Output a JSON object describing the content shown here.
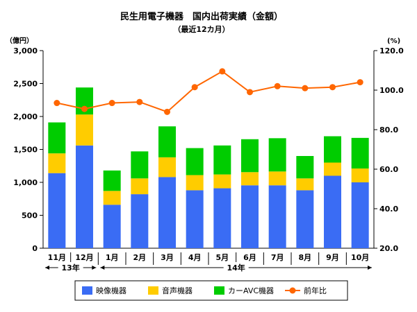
{
  "chart_data": {
    "type": "bar",
    "title": "民生用電子機器　国内出荷実績（金額）",
    "subtitle": "（最近12カ月）",
    "categories": [
      "11月",
      "12月",
      "1月",
      "2月",
      "3月",
      "4月",
      "5月",
      "6月",
      "7月",
      "8月",
      "9月",
      "10月"
    ],
    "year_groups": [
      {
        "label": "13年",
        "from": 0,
        "to": 1
      },
      {
        "label": "14年",
        "from": 2,
        "to": 11
      }
    ],
    "series": [
      {
        "name": "映像機器",
        "kind": "bar",
        "axis": "left",
        "color": "#3a6cf4",
        "values": [
          1140,
          1560,
          660,
          820,
          1080,
          880,
          910,
          955,
          955,
          880,
          1100,
          1000
        ]
      },
      {
        "name": "音声機器",
        "kind": "bar",
        "axis": "left",
        "color": "#ffcc00",
        "values": [
          300,
          470,
          210,
          240,
          300,
          230,
          210,
          200,
          210,
          180,
          200,
          210
        ]
      },
      {
        "name": "カーAVC機器",
        "kind": "bar",
        "axis": "left",
        "color": "#00cc00",
        "values": [
          470,
          410,
          310,
          410,
          470,
          410,
          440,
          500,
          505,
          340,
          400,
          465
        ]
      },
      {
        "name": "前年比",
        "kind": "line",
        "axis": "right",
        "color": "#ff6600",
        "values": [
          93.5,
          90.5,
          93.5,
          94.0,
          89.0,
          101.5,
          109.5,
          99.0,
          102.0,
          101.0,
          101.5,
          104.0
        ]
      }
    ],
    "left_axis": {
      "unit": "（億円）",
      "ylim": [
        0,
        3000
      ],
      "ticks": [
        0,
        500,
        1000,
        1500,
        2000,
        2500,
        3000
      ],
      "tick_labels": [
        "0",
        "500",
        "1,000",
        "1,500",
        "2,000",
        "2,500",
        "3,000"
      ]
    },
    "right_axis": {
      "unit": "(%)",
      "ylim": [
        20,
        120
      ],
      "ticks": [
        20,
        40,
        60,
        80,
        100,
        120
      ],
      "tick_labels": [
        "20.0",
        "40.0",
        "60.0",
        "80.0",
        "100.0",
        "120.0"
      ]
    },
    "grid": false,
    "legend_position": "bottom"
  }
}
